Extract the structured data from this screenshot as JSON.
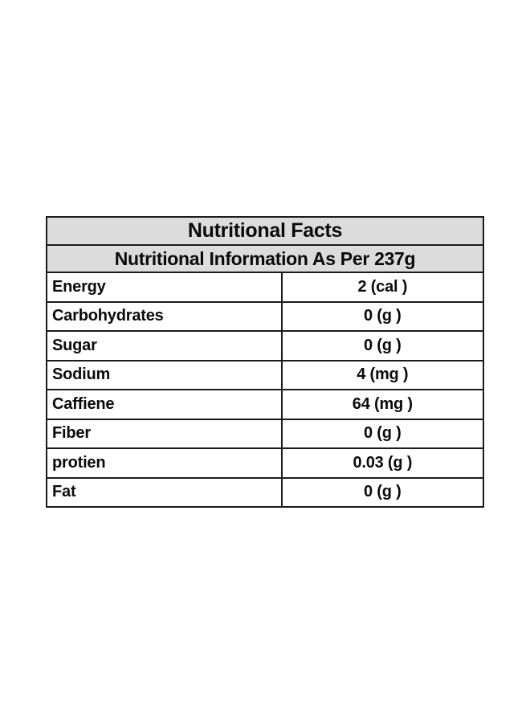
{
  "table": {
    "title": "Nutritional Facts",
    "subtitle": "Nutritional Information As Per 237g",
    "rows": [
      {
        "label": "Energy",
        "value": "2 (cal )"
      },
      {
        "label": "Carbohydrates",
        "value": "0 (g )"
      },
      {
        "label": "Sugar",
        "value": "0 (g )"
      },
      {
        "label": "Sodium",
        "value": "4 (mg )"
      },
      {
        "label": "Caffiene",
        "value": "64 (mg )"
      },
      {
        "label": "Fiber",
        "value": "0 (g )"
      },
      {
        "label": "protien",
        "value": "0.03 (g )"
      },
      {
        "label": "Fat",
        "value": "0 (g )"
      }
    ],
    "colors": {
      "header_bg": "#dcdcdc",
      "border": "#1b1b1b",
      "text": "#0a0a0a",
      "page_bg": "#ffffff"
    }
  }
}
